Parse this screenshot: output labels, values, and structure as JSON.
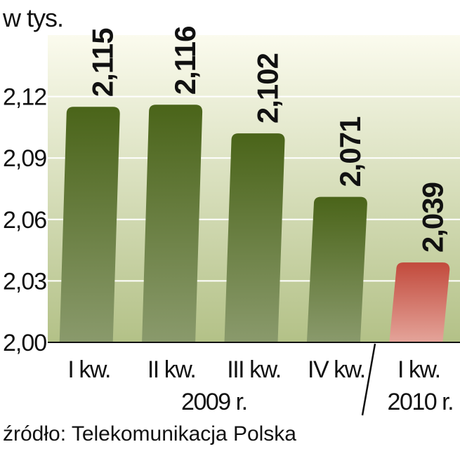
{
  "chart_data": {
    "type": "bar",
    "unit_label": "w tys.",
    "categories": [
      "I kw.",
      "II kw.",
      "III kw.",
      "IV kw.",
      "I kw."
    ],
    "values": [
      2.115,
      2.116,
      2.102,
      2.071,
      2.039
    ],
    "value_labels": [
      "2,115",
      "2,116",
      "2,102",
      "2,071",
      "2,039"
    ],
    "groups": [
      {
        "label": "2009 r.",
        "categories": [
          0,
          1,
          2,
          3
        ]
      },
      {
        "label": "2010 r.",
        "categories": [
          4
        ]
      }
    ],
    "ylim": [
      2.0,
      2.15
    ],
    "yticks": [
      2.0,
      2.03,
      2.06,
      2.09,
      2.12
    ],
    "ytick_labels": [
      "2,00",
      "2,03",
      "2,06",
      "2,09",
      "2,12"
    ],
    "grid": true,
    "colors": {
      "bar": "#4f6a1f",
      "highlight_bar": "#c9584a",
      "background_top": "#f8f9e6",
      "background_bottom": "#b8c48a"
    },
    "highlight_index": 4
  },
  "source": "źródło: Telekomunikacja Polska"
}
